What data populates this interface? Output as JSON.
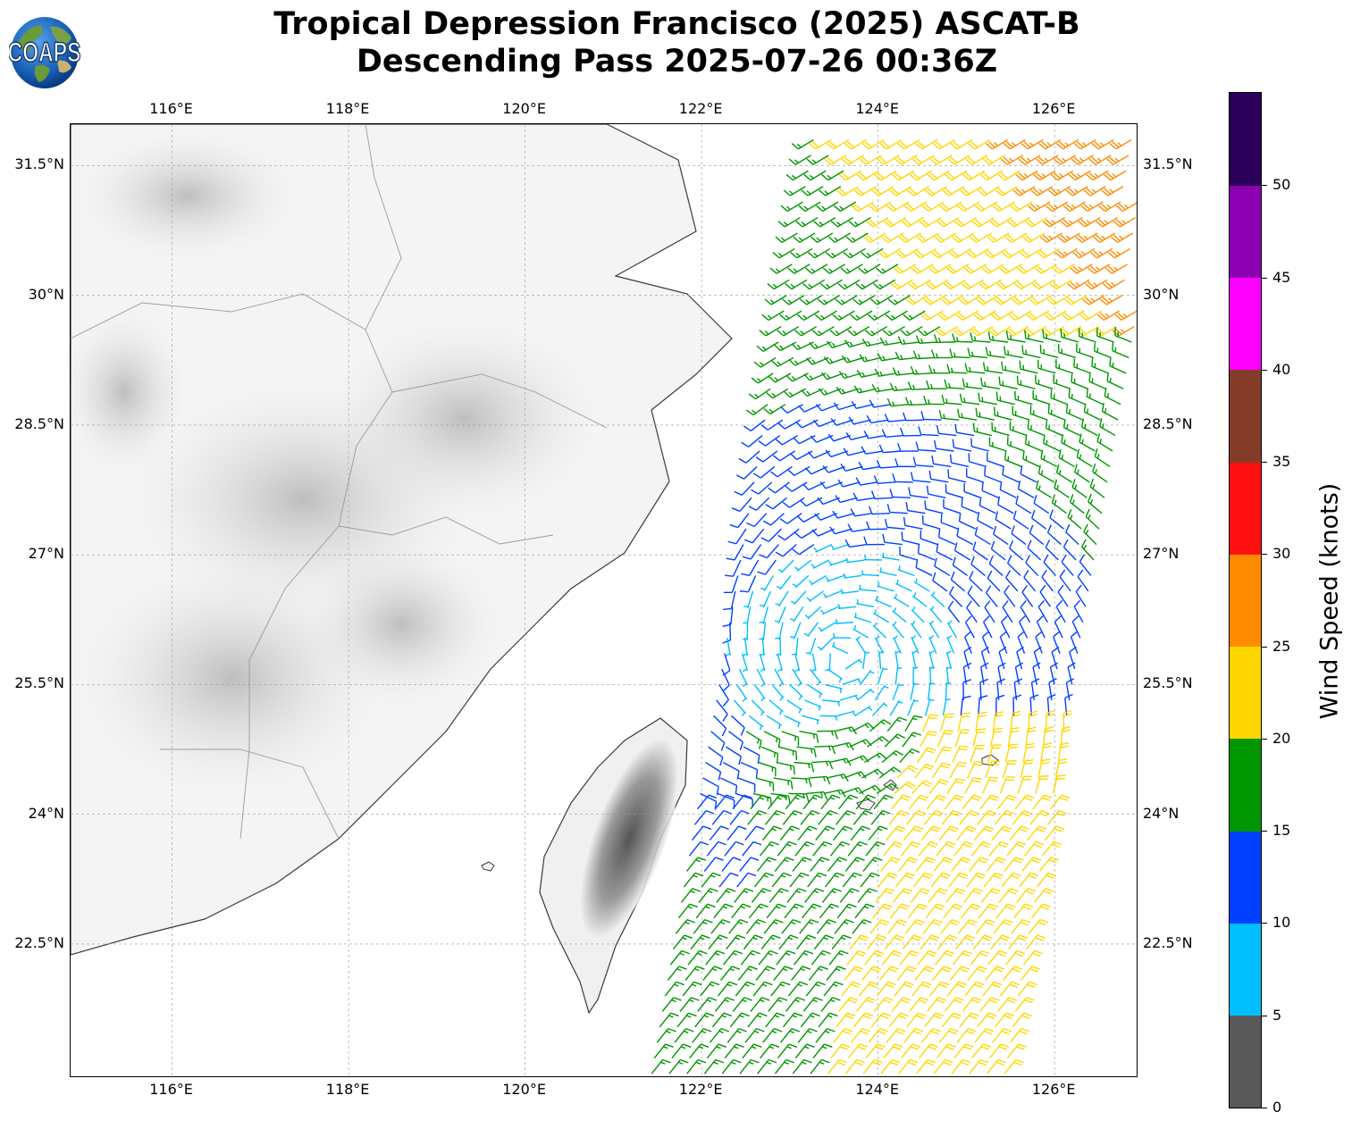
{
  "title_line1": "Tropical Depression Francisco (2025) ASCAT-B",
  "title_line2": "Descending Pass 2025-07-26 00:36Z",
  "logo_text": "COAPS",
  "map": {
    "lon_range": [
      114.85,
      126.95
    ],
    "lat_range": [
      20.95,
      31.98
    ],
    "lon_ticks": [
      "116°E",
      "118°E",
      "120°E",
      "122°E",
      "124°E",
      "126°E"
    ],
    "lon_values": [
      116,
      118,
      120,
      122,
      124,
      126
    ],
    "lat_ticks": [
      "31.5°N",
      "30°N",
      "28.5°N",
      "27°N",
      "25.5°N",
      "24°N",
      "22.5°N"
    ],
    "lat_values": [
      31.5,
      30,
      28.5,
      27,
      25.5,
      24,
      22.5
    ],
    "gridlines": true,
    "storm_center": [
      123.6,
      25.8
    ]
  },
  "colorbar": {
    "label": "Wind Speed (knots)",
    "tick_labels": [
      "0",
      "5",
      "10",
      "15",
      "20",
      "25",
      "30",
      "35",
      "40",
      "45",
      "50"
    ],
    "tick_values": [
      0,
      5,
      10,
      15,
      20,
      25,
      30,
      35,
      40,
      45,
      50
    ],
    "min": 0,
    "max": 55,
    "bins": [
      {
        "from": 0,
        "to": 5,
        "color": "#595959"
      },
      {
        "from": 5,
        "to": 10,
        "color": "#00bfff"
      },
      {
        "from": 10,
        "to": 15,
        "color": "#0040ff"
      },
      {
        "from": 15,
        "to": 20,
        "color": "#009600"
      },
      {
        "from": 20,
        "to": 25,
        "color": "#ffd700"
      },
      {
        "from": 25,
        "to": 30,
        "color": "#ff8c00"
      },
      {
        "from": 30,
        "to": 35,
        "color": "#ff1010"
      },
      {
        "from": 35,
        "to": 40,
        "color": "#843c28"
      },
      {
        "from": 40,
        "to": 45,
        "color": "#ff00ff"
      },
      {
        "from": 45,
        "to": 50,
        "color": "#8b00b0"
      },
      {
        "from": 50,
        "to": 55,
        "color": "#2b005a"
      }
    ]
  }
}
